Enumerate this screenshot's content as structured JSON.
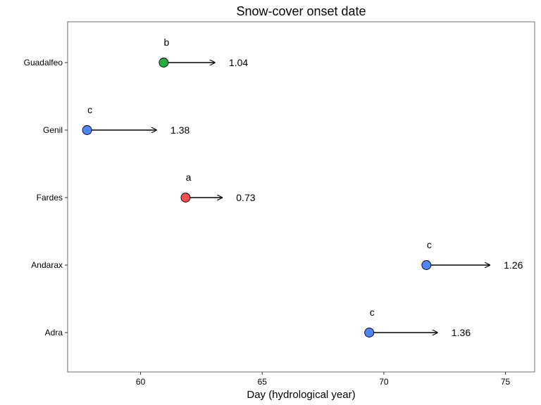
{
  "chart_data": {
    "type": "scatter",
    "title": "Snow-cover onset date",
    "xlabel": "Day (hydrological year)",
    "ylabel": "",
    "xlim": [
      57,
      76.2
    ],
    "xticks": [
      60,
      65,
      70,
      75
    ],
    "grid": false,
    "legend": "none",
    "categories": [
      "Guadalfeo",
      "Genil",
      "Fardes",
      "Andarax",
      "Adra"
    ],
    "points": [
      {
        "basin": "Guadalfeo",
        "x": 60.95,
        "x_end": 63.05,
        "value_label": "1.04",
        "group": "b",
        "color": "#22b03a"
      },
      {
        "basin": "Genil",
        "x": 57.8,
        "x_end": 60.65,
        "value_label": "1.38",
        "group": "c",
        "color": "#4f86f7"
      },
      {
        "basin": "Fardes",
        "x": 61.85,
        "x_end": 63.35,
        "value_label": "0.73",
        "group": "a",
        "color": "#f0524f"
      },
      {
        "basin": "Andarax",
        "x": 71.75,
        "x_end": 74.35,
        "value_label": "1.26",
        "group": "c",
        "color": "#4f86f7"
      },
      {
        "basin": "Adra",
        "x": 69.4,
        "x_end": 72.2,
        "value_label": "1.36",
        "group": "c",
        "color": "#4f86f7"
      }
    ]
  }
}
